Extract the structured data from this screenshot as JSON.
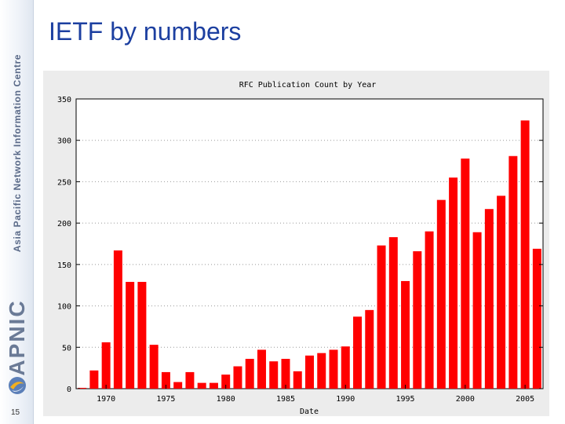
{
  "slide": {
    "title": "IETF by numbers",
    "number": "15",
    "org_name": "Asia Pacific Network Information Centre",
    "brand": "APNIC",
    "logo_icon": "globe-swirl-icon"
  },
  "colors": {
    "bar": "#ff0000",
    "title": "#1c3fa0",
    "grid": "#999999",
    "frame": "#ececec"
  },
  "chart_data": {
    "type": "bar",
    "title": "RFC Publication Count by Year",
    "xlabel": "Date",
    "ylabel": "",
    "ylim": [
      0,
      350
    ],
    "yticks": [
      0,
      50,
      100,
      150,
      200,
      250,
      300,
      350
    ],
    "xticks": [
      1970,
      1975,
      1980,
      1985,
      1990,
      1995,
      2000,
      2005
    ],
    "grid": true,
    "categories": [
      1968,
      1969,
      1970,
      1971,
      1972,
      1973,
      1974,
      1975,
      1976,
      1977,
      1978,
      1979,
      1980,
      1981,
      1982,
      1983,
      1984,
      1985,
      1986,
      1987,
      1988,
      1989,
      1990,
      1991,
      1992,
      1993,
      1994,
      1995,
      1996,
      1997,
      1998,
      1999,
      2000,
      2001,
      2002,
      2003,
      2004,
      2005,
      2006
    ],
    "values": [
      1,
      22,
      56,
      167,
      129,
      129,
      53,
      20,
      8,
      20,
      7,
      7,
      17,
      27,
      36,
      47,
      33,
      36,
      21,
      40,
      43,
      47,
      51,
      87,
      95,
      173,
      183,
      130,
      166,
      190,
      228,
      255,
      278,
      189,
      217,
      233,
      281,
      324,
      169
    ]
  }
}
